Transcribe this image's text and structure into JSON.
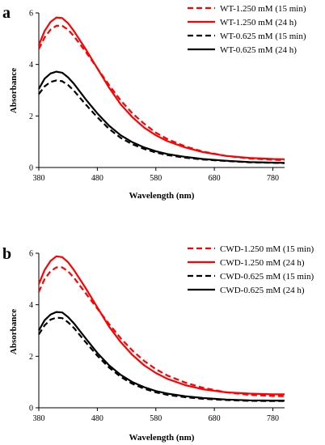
{
  "chart_data": [
    {
      "panel_label": "a",
      "type": "line",
      "xlabel": "Wavelength (nm)",
      "ylabel": "Absorbance",
      "xlim": [
        380,
        800
      ],
      "ylim": [
        0,
        6
      ],
      "xticks": [
        380,
        480,
        580,
        680,
        780
      ],
      "yticks": [
        0,
        2,
        4,
        6
      ],
      "grid": false,
      "legend_position": "top-right",
      "x": [
        380,
        390,
        400,
        410,
        420,
        430,
        440,
        460,
        480,
        500,
        520,
        540,
        560,
        580,
        600,
        630,
        660,
        700,
        740,
        780,
        800
      ],
      "series": [
        {
          "name": "WT-1.250 mM (15 min)",
          "color": "#ff0000",
          "dash": "dashed",
          "values": [
            4.6,
            5.05,
            5.35,
            5.5,
            5.5,
            5.35,
            5.1,
            4.5,
            3.85,
            3.2,
            2.6,
            2.1,
            1.7,
            1.35,
            1.1,
            0.82,
            0.62,
            0.45,
            0.35,
            0.3,
            0.28
          ]
        },
        {
          "name": "WT-1.250 mM (24 h)",
          "color": "#ff0000",
          "dash": "solid",
          "values": [
            4.75,
            5.3,
            5.65,
            5.82,
            5.8,
            5.6,
            5.3,
            4.6,
            3.85,
            3.1,
            2.45,
            1.95,
            1.55,
            1.25,
            1.02,
            0.78,
            0.6,
            0.45,
            0.37,
            0.33,
            0.32
          ]
        },
        {
          "name": "WT-0.625 mM (15 min)",
          "color": "#000000",
          "dash": "dashed",
          "values": [
            2.85,
            3.15,
            3.32,
            3.38,
            3.35,
            3.2,
            2.98,
            2.45,
            1.95,
            1.5,
            1.15,
            0.9,
            0.72,
            0.58,
            0.48,
            0.38,
            0.31,
            0.25,
            0.2,
            0.18,
            0.17
          ]
        },
        {
          "name": "WT-0.625 mM (24 h)",
          "color": "#000000",
          "dash": "solid",
          "values": [
            3.05,
            3.45,
            3.65,
            3.72,
            3.68,
            3.5,
            3.25,
            2.65,
            2.1,
            1.62,
            1.25,
            0.98,
            0.78,
            0.63,
            0.52,
            0.41,
            0.33,
            0.26,
            0.21,
            0.19,
            0.18
          ]
        }
      ]
    },
    {
      "panel_label": "b",
      "type": "line",
      "xlabel": "Wavelength (nm)",
      "ylabel": "Absorbance",
      "xlim": [
        380,
        800
      ],
      "ylim": [
        0,
        6
      ],
      "xticks": [
        380,
        480,
        580,
        680,
        780
      ],
      "yticks": [
        0,
        2,
        4,
        6
      ],
      "grid": false,
      "legend_position": "top-right",
      "x": [
        380,
        390,
        400,
        410,
        420,
        430,
        440,
        460,
        480,
        500,
        520,
        540,
        560,
        580,
        600,
        630,
        660,
        700,
        740,
        780,
        800
      ],
      "series": [
        {
          "name": "CWD-1.250 mM (15 min)",
          "color": "#ff0000",
          "dash": "dashed",
          "values": [
            4.5,
            5.0,
            5.3,
            5.45,
            5.45,
            5.3,
            5.05,
            4.45,
            3.85,
            3.25,
            2.7,
            2.22,
            1.82,
            1.5,
            1.25,
            0.98,
            0.78,
            0.6,
            0.5,
            0.46,
            0.45
          ]
        },
        {
          "name": "CWD-1.250 mM (24 h)",
          "color": "#ff0000",
          "dash": "solid",
          "values": [
            4.8,
            5.35,
            5.7,
            5.88,
            5.85,
            5.65,
            5.35,
            4.65,
            3.9,
            3.15,
            2.55,
            2.05,
            1.65,
            1.35,
            1.12,
            0.88,
            0.72,
            0.6,
            0.55,
            0.52,
            0.52
          ]
        },
        {
          "name": "CWD-0.625 mM (15 min)",
          "color": "#000000",
          "dash": "dashed",
          "values": [
            2.85,
            3.2,
            3.42,
            3.5,
            3.48,
            3.32,
            3.1,
            2.55,
            2.02,
            1.56,
            1.2,
            0.93,
            0.74,
            0.6,
            0.5,
            0.41,
            0.35,
            0.3,
            0.27,
            0.26,
            0.26
          ]
        },
        {
          "name": "CWD-0.625 mM (24 h)",
          "color": "#000000",
          "dash": "solid",
          "values": [
            3.0,
            3.4,
            3.62,
            3.72,
            3.7,
            3.52,
            3.28,
            2.7,
            2.13,
            1.65,
            1.28,
            1.0,
            0.8,
            0.65,
            0.55,
            0.45,
            0.38,
            0.32,
            0.29,
            0.28,
            0.28
          ]
        }
      ]
    }
  ]
}
